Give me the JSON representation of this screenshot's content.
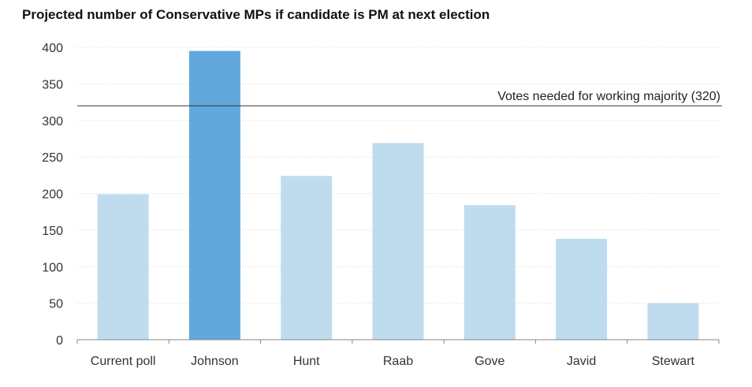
{
  "chart_data": {
    "type": "bar",
    "title": "Projected number of Conservative MPs if candidate is PM at next election",
    "xlabel": "",
    "ylabel": "",
    "categories": [
      "Current poll",
      "Johnson",
      "Hunt",
      "Raab",
      "Gove",
      "Javid",
      "Stewart"
    ],
    "values": [
      199,
      395,
      224,
      269,
      184,
      138,
      50
    ],
    "highlight_category": "Johnson",
    "ylim": [
      0,
      400
    ],
    "yticks": [
      0,
      50,
      100,
      150,
      200,
      250,
      300,
      350,
      400
    ],
    "grid": true,
    "legend": "none",
    "reference_line": {
      "value": 320,
      "label": "Votes needed for working majority (320)"
    },
    "colors": {
      "bar": "#bfdcef",
      "bar_highlight": "#62a8dc",
      "grid": "#e6e6e6",
      "axis": "#888888",
      "reference_line": "#333333"
    }
  }
}
